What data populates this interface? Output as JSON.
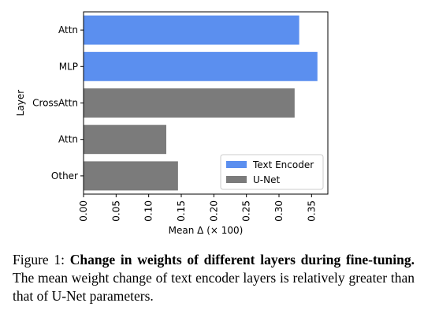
{
  "chart_data": {
    "type": "bar",
    "orientation": "horizontal",
    "categories": [
      "Attn",
      "MLP",
      "CrossAttn",
      "Attn",
      "Other"
    ],
    "values": [
      0.331,
      0.359,
      0.324,
      0.127,
      0.145
    ],
    "bar_series": [
      "Text Encoder",
      "Text Encoder",
      "U-Net",
      "U-Net",
      "U-Net"
    ],
    "series": [
      {
        "name": "Text Encoder",
        "color": "#5b8fef"
      },
      {
        "name": "U-Net",
        "color": "#7b7b7b"
      }
    ],
    "xlabel": "Mean Δ (× 100)",
    "ylabel": "Layer",
    "xlim": [
      0,
      0.375
    ],
    "xticks": [
      "0.00",
      "0.05",
      "0.10",
      "0.15",
      "0.20",
      "0.25",
      "0.30",
      "0.35"
    ],
    "xtick_values": [
      0,
      0.05,
      0.1,
      0.15,
      0.2,
      0.25,
      0.3,
      0.35
    ],
    "legend_position": "lower-right",
    "grid": false
  },
  "caption": {
    "label": "Figure 1:",
    "bold": "Change in weights of different layers during fine-tuning.",
    "text": "The mean weight change of text encoder layers is relatively greater than that of U-Net parameters."
  }
}
